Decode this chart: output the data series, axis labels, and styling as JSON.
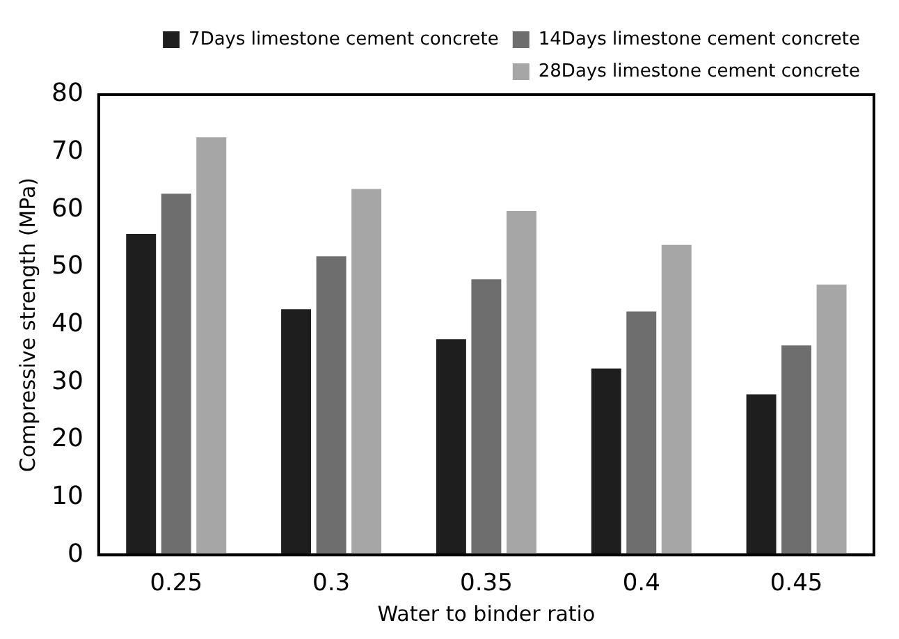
{
  "chart_data": {
    "type": "bar",
    "xlabel": "Water to binder ratio",
    "ylabel": "Compressive strength (MPa)",
    "categories": [
      "0.25",
      "0.3",
      "0.35",
      "0.4",
      "0.45"
    ],
    "series": [
      {
        "name": "7Days limestone cement concrete",
        "color": "#1e1e1e",
        "values": [
          55.8,
          42.7,
          37.5,
          32.4,
          27.9
        ]
      },
      {
        "name": "14Days limestone cement concrete",
        "color": "#6e6e6e",
        "values": [
          62.8,
          51.9,
          47.9,
          42.3,
          36.4
        ]
      },
      {
        "name": "28Days limestone cement concrete",
        "color": "#a6a6a6",
        "values": [
          72.6,
          63.6,
          59.8,
          53.9,
          47.0
        ]
      }
    ],
    "ylim": [
      0,
      80
    ],
    "yticks": [
      0,
      10,
      20,
      30,
      40,
      50,
      60,
      70,
      80
    ],
    "grid": false,
    "legend": "top right"
  }
}
